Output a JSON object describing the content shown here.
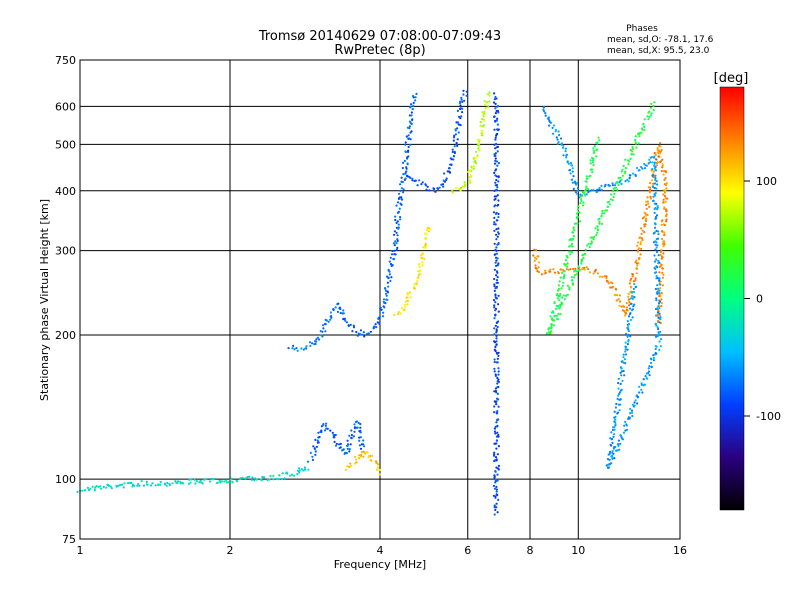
{
  "chart_data": {
    "type": "scatter",
    "title": "Tromsø 20140629 07:08:00-07:09:43",
    "subtitle": "RwPretec (8p)",
    "xlabel": "Frequency [MHz]",
    "ylabel": "Stationary phase Virtual Height [km]",
    "x_scale": "log",
    "y_scale": "log",
    "xlim": [
      1,
      16
    ],
    "ylim": [
      75,
      750
    ],
    "x_ticks": [
      1,
      2,
      4,
      6,
      8,
      10,
      16
    ],
    "y_ticks": [
      75,
      100,
      200,
      300,
      400,
      500,
      600,
      750
    ],
    "grid": true,
    "stats": {
      "heading": "Phases",
      "line_o": "mean, sd,O:  -78.1, 17.6",
      "line_x": "mean, sd,X:  95.5, 23.0"
    },
    "colorbar": {
      "label": "[deg]",
      "ticks": [
        -100,
        0,
        100
      ],
      "range": [
        -180,
        180
      ],
      "colors": [
        "#000000",
        "#2a0080",
        "#0040ff",
        "#00c0ff",
        "#00ff80",
        "#40ff00",
        "#ffff00",
        "#ff8000",
        "#ff0000"
      ]
    },
    "traces": [
      {
        "name": "",
        "phase": -25,
        "points": [
          [
            1.0,
            95
          ],
          [
            1.1,
            96
          ],
          [
            1.2,
            97
          ],
          [
            1.35,
            98
          ],
          [
            1.5,
            98
          ],
          [
            1.7,
            99
          ],
          [
            1.9,
            99
          ],
          [
            2.1,
            100
          ],
          [
            2.3,
            100
          ],
          [
            2.5,
            101
          ],
          [
            2.7,
            103
          ],
          [
            2.9,
            106
          ]
        ]
      },
      {
        "name": "",
        "phase": -70,
        "points": [
          [
            2.65,
            190
          ],
          [
            2.75,
            187
          ],
          [
            2.9,
            190
          ],
          [
            3.05,
            200
          ],
          [
            3.15,
            215
          ],
          [
            3.22,
            228
          ],
          [
            3.3,
            235
          ]
        ]
      },
      {
        "name": "",
        "phase": -78,
        "points": [
          [
            3.3,
            230
          ],
          [
            3.4,
            215
          ],
          [
            3.55,
            205
          ],
          [
            3.7,
            200
          ],
          [
            3.85,
            205
          ],
          [
            4.0,
            215
          ],
          [
            4.1,
            240
          ],
          [
            4.2,
            270
          ],
          [
            4.3,
            310
          ],
          [
            4.35,
            360
          ],
          [
            4.45,
            420
          ],
          [
            4.55,
            500
          ],
          [
            4.65,
            600
          ],
          [
            4.7,
            640
          ]
        ]
      },
      {
        "name": "",
        "phase": -85,
        "points": [
          [
            4.5,
            430
          ],
          [
            4.7,
            420
          ],
          [
            4.9,
            410
          ],
          [
            5.1,
            400
          ],
          [
            5.3,
            410
          ],
          [
            5.5,
            440
          ],
          [
            5.7,
            520
          ],
          [
            5.85,
            620
          ],
          [
            5.95,
            650
          ]
        ]
      },
      {
        "name": "",
        "phase": -80,
        "points": [
          [
            2.9,
            110
          ],
          [
            3.0,
            120
          ],
          [
            3.1,
            130
          ],
          [
            3.2,
            125
          ],
          [
            3.3,
            118
          ],
          [
            3.4,
            112
          ],
          [
            3.5,
            122
          ],
          [
            3.6,
            132
          ],
          [
            3.7,
            115
          ]
        ]
      },
      {
        "name": "",
        "phase": 95,
        "points": [
          [
            4.3,
            220
          ],
          [
            4.5,
            232
          ],
          [
            4.7,
            255
          ],
          [
            4.85,
            285
          ],
          [
            4.95,
            320
          ],
          [
            5.05,
            340
          ]
        ]
      },
      {
        "name": "",
        "phase": 75,
        "points": [
          [
            5.6,
            400
          ],
          [
            5.8,
            405
          ],
          [
            6.0,
            420
          ],
          [
            6.2,
            460
          ],
          [
            6.35,
            520
          ],
          [
            6.5,
            590
          ],
          [
            6.6,
            640
          ]
        ]
      },
      {
        "name": "",
        "phase": 110,
        "points": [
          [
            3.45,
            105
          ],
          [
            3.6,
            110
          ],
          [
            3.75,
            115
          ],
          [
            3.9,
            108
          ],
          [
            4.0,
            102
          ]
        ]
      },
      {
        "name": "",
        "phase": -90,
        "points": [
          [
            6.85,
            85
          ],
          [
            6.85,
            100
          ],
          [
            6.85,
            120
          ],
          [
            6.85,
            150
          ],
          [
            6.85,
            180
          ],
          [
            6.85,
            230
          ],
          [
            6.85,
            280
          ],
          [
            6.85,
            340
          ],
          [
            6.85,
            400
          ],
          [
            6.85,
            480
          ],
          [
            6.85,
            560
          ],
          [
            6.85,
            640
          ]
        ]
      },
      {
        "name": "",
        "phase": 130,
        "points": [
          [
            8.2,
            300
          ],
          [
            8.3,
            270
          ],
          [
            10.5,
            275
          ],
          [
            11.5,
            260
          ],
          [
            12.5,
            220
          ],
          [
            14.5,
            500
          ],
          [
            15.0,
            410
          ],
          [
            14.5,
            210
          ]
        ]
      },
      {
        "name": "",
        "phase": -60,
        "points": [
          [
            8.5,
            600
          ],
          [
            9.5,
            470
          ],
          [
            10.0,
            390
          ],
          [
            12.5,
            420
          ],
          [
            14.2,
            470
          ],
          [
            14.5,
            190
          ],
          [
            11.5,
            105
          ],
          [
            13.0,
            255
          ]
        ]
      },
      {
        "name": "",
        "phase": 20,
        "points": [
          [
            14.2,
            610
          ],
          [
            8.7,
            200
          ],
          [
            11.0,
            520
          ]
        ]
      }
    ]
  }
}
